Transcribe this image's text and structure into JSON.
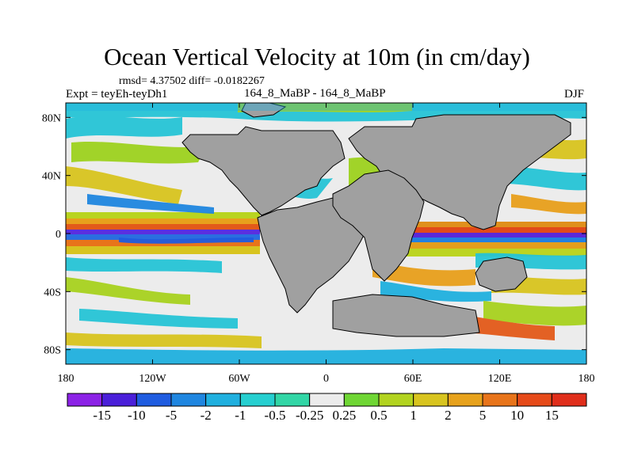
{
  "title": "Ocean Vertical Velocity at 10m (in cm/day)",
  "stats": "rmsd= 4.37502 diff= -0.0182267",
  "experiment": "Expt = teyEh-teyDh1",
  "case_label": "164_8_MaBP - 164_8_MaBP",
  "season": "DJF",
  "map": {
    "lat_ticks": [
      "80N",
      "40N",
      "0",
      "40S",
      "80S"
    ],
    "lon_ticks": [
      "180",
      "120W",
      "60W",
      "0",
      "60E",
      "120E",
      "180"
    ],
    "land_color": "#a0a0a0",
    "bounds": {
      "lon": [
        -180,
        180
      ],
      "lat": [
        -90,
        90
      ]
    }
  },
  "colorbar": {
    "labels": [
      "-15",
      "-10",
      "-5",
      "-2",
      "-1",
      "-0.5",
      "-0.25",
      "0.25",
      "0.5",
      "1",
      "2",
      "5",
      "10",
      "15"
    ],
    "colors": [
      "#8c22e6",
      "#4a1fd9",
      "#1f5ce0",
      "#1f86e0",
      "#20b0df",
      "#26cfd0",
      "#32d6a6",
      "#ececec",
      "#6fd634",
      "#b2d31f",
      "#d8c41f",
      "#e7a21c",
      "#e8741a",
      "#e64a19",
      "#e02e1b"
    ]
  }
}
